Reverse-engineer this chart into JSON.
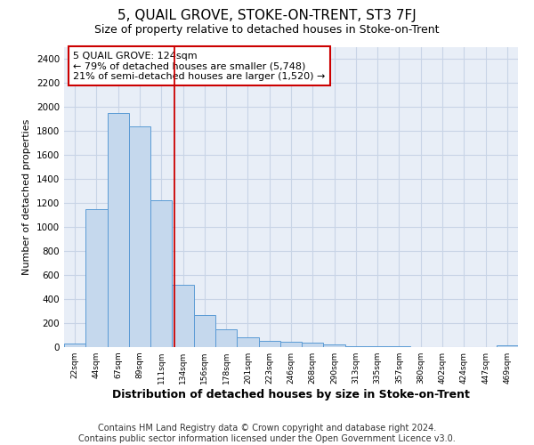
{
  "title": "5, QUAIL GROVE, STOKE-ON-TRENT, ST3 7FJ",
  "subtitle": "Size of property relative to detached houses in Stoke-on-Trent",
  "xlabel": "Distribution of detached houses by size in Stoke-on-Trent",
  "ylabel": "Number of detached properties",
  "bar_labels": [
    "22sqm",
    "44sqm",
    "67sqm",
    "89sqm",
    "111sqm",
    "134sqm",
    "156sqm",
    "178sqm",
    "201sqm",
    "223sqm",
    "246sqm",
    "268sqm",
    "290sqm",
    "313sqm",
    "335sqm",
    "357sqm",
    "380sqm",
    "402sqm",
    "424sqm",
    "447sqm",
    "469sqm"
  ],
  "bar_values": [
    30,
    1150,
    1950,
    1840,
    1220,
    515,
    270,
    150,
    82,
    50,
    42,
    35,
    20,
    10,
    5,
    5,
    3,
    2,
    2,
    2,
    15
  ],
  "bar_color": "#c5d8ed",
  "bar_edge_color": "#5b9bd5",
  "ylim": [
    0,
    2500
  ],
  "yticks": [
    0,
    200,
    400,
    600,
    800,
    1000,
    1200,
    1400,
    1600,
    1800,
    2000,
    2200,
    2400
  ],
  "grid_color": "#c8d4e6",
  "bg_color": "#e8eef7",
  "annotation_title": "5 QUAIL GROVE: 124sqm",
  "annotation_line1": "← 79% of detached houses are smaller (5,748)",
  "annotation_line2": "21% of semi-detached houses are larger (1,520) →",
  "vline_position": 4.62,
  "vline_color": "#cc0000",
  "footer_line1": "Contains HM Land Registry data © Crown copyright and database right 2024.",
  "footer_line2": "Contains public sector information licensed under the Open Government Licence v3.0.",
  "title_fontsize": 11,
  "subtitle_fontsize": 9,
  "annotation_fontsize": 8,
  "ylabel_fontsize": 8,
  "xlabel_fontsize": 9,
  "footer_fontsize": 7,
  "annotation_box_color": "#cc0000",
  "figwidth": 6.0,
  "figheight": 5.0,
  "dpi": 100
}
